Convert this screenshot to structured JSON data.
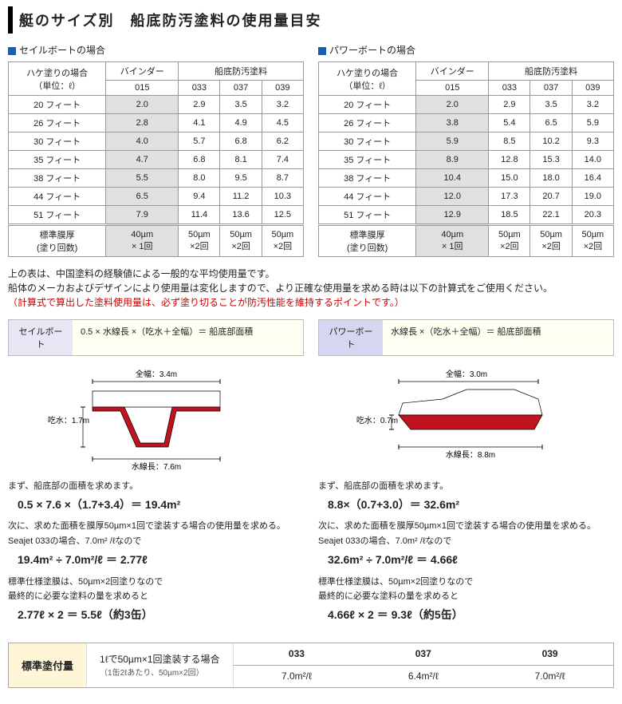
{
  "title": "艇のサイズ別　船底防汚塗料の使用量目安",
  "tables": {
    "sail": {
      "heading": "セイルボートの場合",
      "corner": "ハケ塗りの場合\n（単位：ℓ）",
      "binder_head": "バインダー",
      "paint_head": "船底防汚塗料",
      "cols": [
        "015",
        "033",
        "037",
        "039"
      ],
      "rows": [
        {
          "label": "20 フィート",
          "binder": "2.0",
          "v": [
            "2.9",
            "3.5",
            "3.2"
          ]
        },
        {
          "label": "26 フィート",
          "binder": "2.8",
          "v": [
            "4.1",
            "4.9",
            "4.5"
          ]
        },
        {
          "label": "30 フィート",
          "binder": "4.0",
          "v": [
            "5.7",
            "6.8",
            "6.2"
          ]
        },
        {
          "label": "35 フィート",
          "binder": "4.7",
          "v": [
            "6.8",
            "8.1",
            "7.4"
          ]
        },
        {
          "label": "38 フィート",
          "binder": "5.5",
          "v": [
            "8.0",
            "9.5",
            "8.7"
          ]
        },
        {
          "label": "44 フィート",
          "binder": "6.5",
          "v": [
            "9.4",
            "11.2",
            "10.3"
          ]
        },
        {
          "label": "51 フィート",
          "binder": "7.9",
          "v": [
            "11.4",
            "13.6",
            "12.5"
          ]
        }
      ],
      "thick_label": "標準膜厚\n(塗り回数)",
      "thick": [
        "40µm\n× 1回",
        "50µm\n×2回",
        "50µm\n×2回",
        "50µm\n×2回"
      ]
    },
    "power": {
      "heading": "パワーボートの場合",
      "corner": "ハケ塗りの場合\n（単位：ℓ）",
      "binder_head": "バインダー",
      "paint_head": "船底防汚塗料",
      "cols": [
        "015",
        "033",
        "037",
        "039"
      ],
      "rows": [
        {
          "label": "20 フィート",
          "binder": "2.0",
          "v": [
            "2.9",
            "3.5",
            "3.2"
          ]
        },
        {
          "label": "26 フィート",
          "binder": "3.8",
          "v": [
            "5.4",
            "6.5",
            "5.9"
          ]
        },
        {
          "label": "30 フィート",
          "binder": "5.9",
          "v": [
            "8.5",
            "10.2",
            "9.3"
          ]
        },
        {
          "label": "35 フィート",
          "binder": "8.9",
          "v": [
            "12.8",
            "15.3",
            "14.0"
          ]
        },
        {
          "label": "38 フィート",
          "binder": "10.4",
          "v": [
            "15.0",
            "18.0",
            "16.4"
          ]
        },
        {
          "label": "44 フィート",
          "binder": "12.0",
          "v": [
            "17.3",
            "20.7",
            "19.0"
          ]
        },
        {
          "label": "51 フィート",
          "binder": "12.9",
          "v": [
            "18.5",
            "22.1",
            "20.3"
          ]
        }
      ],
      "thick_label": "標準膜厚\n(塗り回数)",
      "thick": [
        "40µm\n× 1回",
        "50µm\n×2回",
        "50µm\n×2回",
        "50µm\n×2回"
      ]
    }
  },
  "notes": {
    "line1": "上の表は、中国塗料の経験値による一般的な平均使用量です。",
    "line2": "船体のメーカおよびデザインにより使用量は変化しますので、より正確な使用量を求める時は以下の計算式をご使用ください。",
    "line3": "（計算式で算出した塗料使用量は、必ず塗り切ることが防汚性能を維持するポイントです。）"
  },
  "formulas": {
    "sail_label": "セイルボート",
    "sail_text": "0.5 × 水線長 ×（吃水＋全幅）＝ 船底部面積",
    "power_label": "パワーボート",
    "power_text": "水線長 ×（吃水＋全幅）＝ 船底部面積"
  },
  "diagrams": {
    "sail": {
      "beam": "全幅：3.4m",
      "draft": "吃水：1.7m",
      "lwl": "水線長：7.6m"
    },
    "power": {
      "beam": "全幅：3.0m",
      "draft": "吃水：0.7m",
      "lwl": "水線長：8.8m"
    }
  },
  "calc": {
    "sail": {
      "p1": "まず、船底部の面積を求めます。",
      "eq1": "0.5 × 7.6 ×（1.7+3.4）＝ 19.4m²",
      "p2": "次に、求めた面積を膜厚50µm×1回で塗装する場合の使用量を求める。",
      "p3": "Seajet 033の場合、7.0m² /ℓなので",
      "eq2": "19.4m² ÷ 7.0m²/ℓ ＝ 2.77ℓ",
      "p4": "標準仕様塗膜は、50µm×2回塗りなので",
      "p5": "最終的に必要な塗料の量を求めると",
      "eq3": "2.77ℓ × 2 ＝ 5.5ℓ（約3缶）"
    },
    "power": {
      "p1": "まず、船底部の面積を求めます。",
      "eq1": "8.8×（0.7+3.0）＝ 32.6m²",
      "p2": "次に、求めた面積を膜厚50µm×1回で塗装する場合の使用量を求める。",
      "p3": "Seajet 033の場合、7.0m² /ℓなので",
      "eq2": "32.6m² ÷ 7.0m²/ℓ ＝ 4.66ℓ",
      "p4": "標準仕様塗膜は、50µm×2回塗りなので",
      "p5": "最終的に必要な塗料の量を求めると",
      "eq3": "4.66ℓ × 2 ＝ 9.3ℓ（約5缶）"
    }
  },
  "footer": {
    "label": "標準塗付量",
    "mid1": "1ℓで50µm×1回塗装する場合",
    "mid2": "（1缶2ℓあたり、50µm×2回）",
    "cols": [
      "033",
      "037",
      "039"
    ],
    "vals": [
      "7.0m²/ℓ",
      "6.4m²/ℓ",
      "7.0m²/ℓ"
    ]
  },
  "colors": {
    "accent": "#c00",
    "hull": "#c1121f"
  }
}
